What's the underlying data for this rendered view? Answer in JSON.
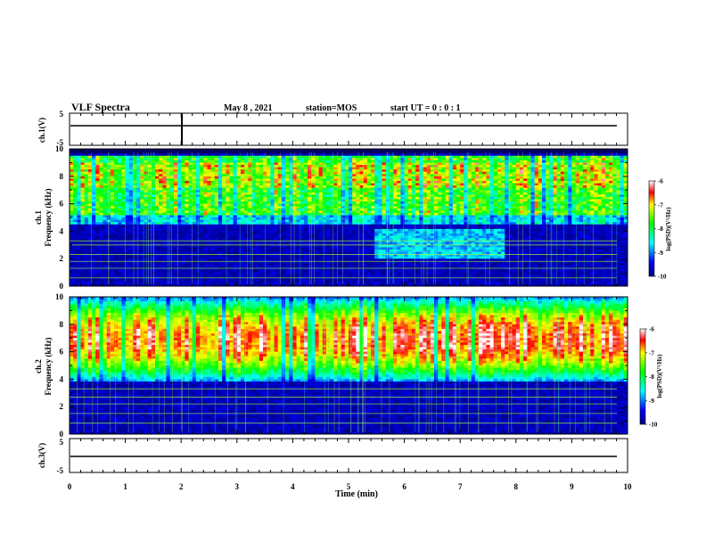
{
  "header": {
    "title": "VLF Spectra",
    "date": "May 8 , 2021",
    "station": "station=MOS",
    "start": "start UT =  0 : 0 : 1"
  },
  "chart_data": [
    {
      "type": "line",
      "name": "ch1",
      "ylabel": "ch.1(V)",
      "xlim": [
        0,
        10
      ],
      "ylim": [
        -5,
        5
      ],
      "yticks": [
        "5",
        "-5"
      ],
      "y": 0
    },
    {
      "type": "heatmap",
      "name": "ch1-spectrogram",
      "ylabel": "ch.1\nFrequency (kHz)",
      "ylabel_top": "ch.1",
      "ylabel_main": "Frequency (kHz)",
      "xlim": [
        0,
        10
      ],
      "ylim": [
        0,
        10
      ],
      "yticks": [
        "0",
        "2",
        "4",
        "6",
        "8",
        "10"
      ],
      "colorbar": {
        "label": "log(PSD)(V²/Hz)",
        "range": [
          -10,
          -6
        ],
        "ticks": [
          "-6",
          "-7",
          "-8",
          "-9",
          "-10"
        ]
      },
      "band_khz": [
        4.5,
        9.5
      ],
      "hiss_min": [
        5.5,
        7.8
      ],
      "hiss_khz": [
        2.0,
        4.2
      ]
    },
    {
      "type": "heatmap",
      "name": "ch2-spectrogram",
      "ylabel_top": "ch.2",
      "ylabel_main": "Frequency (kHz)",
      "xlim": [
        0,
        10
      ],
      "ylim": [
        0,
        10
      ],
      "yticks": [
        "0",
        "2",
        "4",
        "6",
        "8",
        "10"
      ],
      "colorbar": {
        "label": "log(PSD)(V²/Hz)",
        "range": [
          -10,
          -6
        ],
        "ticks": [
          "-6",
          "-7",
          "-8",
          "-9",
          "-10"
        ]
      },
      "band_khz": [
        3.8,
        10
      ]
    },
    {
      "type": "line",
      "name": "ch3",
      "ylabel": "ch.3(V)",
      "xlim": [
        0,
        10
      ],
      "ylim": [
        -5,
        5
      ],
      "yticks": [
        "5",
        "-5"
      ],
      "y": 0
    }
  ],
  "xaxis": {
    "label": "Time (min)",
    "ticks": [
      "0",
      "1",
      "2",
      "3",
      "4",
      "5",
      "6",
      "7",
      "8",
      "9",
      "10"
    ]
  },
  "colors": {
    "background": "#000050",
    "axis": "#000000"
  }
}
